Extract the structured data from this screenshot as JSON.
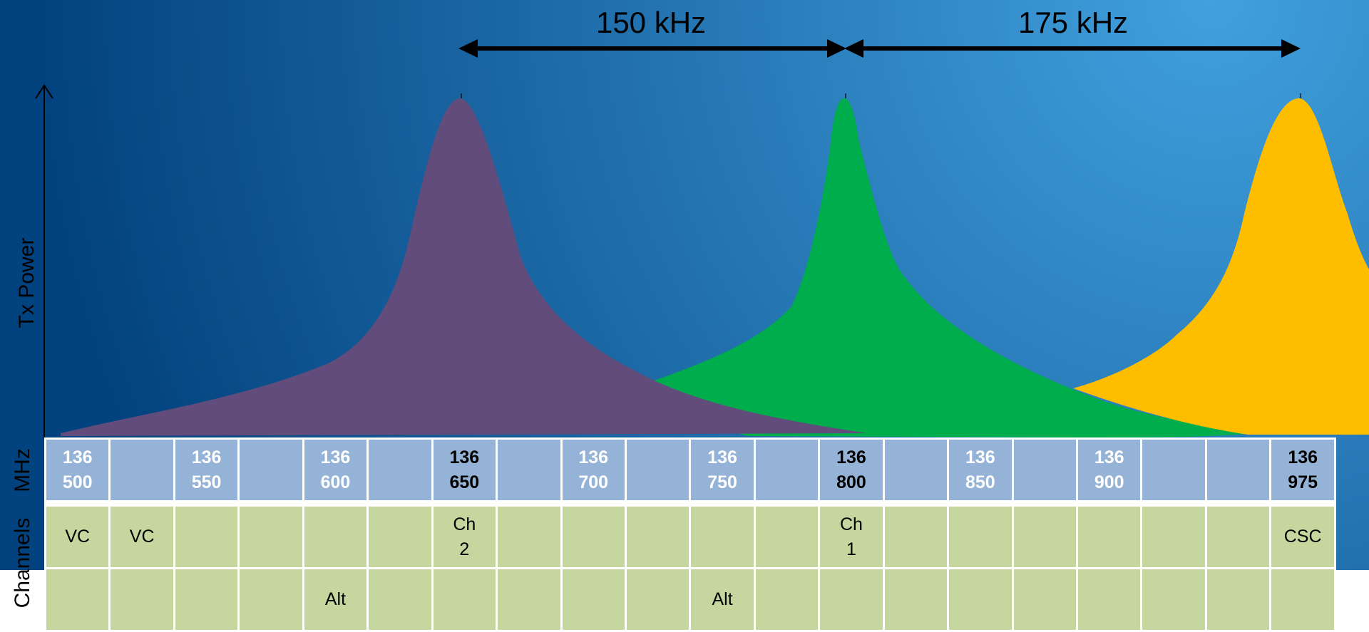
{
  "axis": {
    "y_label": "Tx Power"
  },
  "spacing_labels": [
    "150 kHz",
    "175 kHz"
  ],
  "row_labels": {
    "mhz": "MHz",
    "channels": "Channels"
  },
  "colors": {
    "background_dark": "#02427e",
    "background_light": "#41a0de",
    "peak_purple": "#614c7c",
    "peak_green": "#00ad4d",
    "peak_yellow": "#ffbd00",
    "mhz_cell": "#94b3d6",
    "channel_cell": "#c5d79f"
  },
  "mhz_cells": [
    {
      "top": "136",
      "bottom": "500",
      "highlight": false
    },
    {
      "top": "",
      "bottom": "",
      "highlight": false
    },
    {
      "top": "136",
      "bottom": "550",
      "highlight": false
    },
    {
      "top": "",
      "bottom": "",
      "highlight": false
    },
    {
      "top": "136",
      "bottom": "600",
      "highlight": false
    },
    {
      "top": "",
      "bottom": "",
      "highlight": false
    },
    {
      "top": "136",
      "bottom": "650",
      "highlight": true
    },
    {
      "top": "",
      "bottom": "",
      "highlight": false
    },
    {
      "top": "136",
      "bottom": "700",
      "highlight": false
    },
    {
      "top": "",
      "bottom": "",
      "highlight": false
    },
    {
      "top": "136",
      "bottom": "750",
      "highlight": false
    },
    {
      "top": "",
      "bottom": "",
      "highlight": false
    },
    {
      "top": "136",
      "bottom": "800",
      "highlight": true
    },
    {
      "top": "",
      "bottom": "",
      "highlight": false
    },
    {
      "top": "136",
      "bottom": "850",
      "highlight": false
    },
    {
      "top": "",
      "bottom": "",
      "highlight": false
    },
    {
      "top": "136",
      "bottom": "900",
      "highlight": false
    },
    {
      "top": "",
      "bottom": "",
      "highlight": false
    },
    {
      "top": "",
      "bottom": "",
      "highlight": false
    },
    {
      "top": "136",
      "bottom": "975",
      "highlight": true
    }
  ],
  "channels_row1": [
    {
      "top": "VC",
      "bottom": ""
    },
    {
      "top": "VC",
      "bottom": ""
    },
    {
      "top": "",
      "bottom": ""
    },
    {
      "top": "",
      "bottom": ""
    },
    {
      "top": "",
      "bottom": ""
    },
    {
      "top": "",
      "bottom": ""
    },
    {
      "top": "Ch",
      "bottom": "2"
    },
    {
      "top": "",
      "bottom": ""
    },
    {
      "top": "",
      "bottom": ""
    },
    {
      "top": "",
      "bottom": ""
    },
    {
      "top": "",
      "bottom": ""
    },
    {
      "top": "",
      "bottom": ""
    },
    {
      "top": "Ch",
      "bottom": "1"
    },
    {
      "top": "",
      "bottom": ""
    },
    {
      "top": "",
      "bottom": ""
    },
    {
      "top": "",
      "bottom": ""
    },
    {
      "top": "",
      "bottom": ""
    },
    {
      "top": "",
      "bottom": ""
    },
    {
      "top": "",
      "bottom": ""
    },
    {
      "top": "CSC",
      "bottom": ""
    }
  ],
  "channels_row2": [
    "",
    "",
    "",
    "",
    "Alt",
    "",
    "",
    "",
    "",
    "",
    "Alt",
    "",
    "",
    "",
    "",
    "",
    "",
    "",
    "",
    ""
  ]
}
